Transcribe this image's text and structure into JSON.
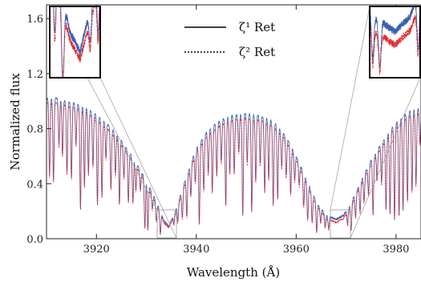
{
  "chart_data": {
    "type": "line",
    "xlabel": "Wavelength (Å)",
    "ylabel": "Normalized flux",
    "xlim": [
      3910,
      3985
    ],
    "ylim": [
      0.0,
      1.7
    ],
    "xticks": [
      3920,
      3940,
      3960,
      3980
    ],
    "yticks": [
      0.0,
      0.4,
      0.8,
      1.2,
      1.6
    ],
    "xtick_labels": [
      "3920",
      "3940",
      "3960",
      "3980"
    ],
    "ytick_labels": [
      "0.0",
      "0.4",
      "0.8",
      "1.2",
      "1.6"
    ],
    "grid": false,
    "legend_placement": "top-center",
    "series": [
      {
        "name": "ζ¹ Ret",
        "style": "solid",
        "color": "#3a5fb0",
        "continuum": [
          [
            3910,
            1.02
          ],
          [
            3912,
            1.02
          ],
          [
            3914,
            1.0
          ],
          [
            3916,
            0.98
          ],
          [
            3918,
            0.95
          ],
          [
            3920,
            0.9
          ],
          [
            3922,
            0.84
          ],
          [
            3924,
            0.76
          ],
          [
            3926,
            0.66
          ],
          [
            3928,
            0.55
          ],
          [
            3930,
            0.42
          ],
          [
            3932,
            0.27
          ],
          [
            3933.5,
            0.13
          ],
          [
            3934.5,
            0.09
          ],
          [
            3936,
            0.22
          ],
          [
            3938,
            0.45
          ],
          [
            3940,
            0.66
          ],
          [
            3942,
            0.77
          ],
          [
            3944,
            0.84
          ],
          [
            3946,
            0.88
          ],
          [
            3948,
            0.9
          ],
          [
            3950,
            0.91
          ],
          [
            3952,
            0.9
          ],
          [
            3954,
            0.88
          ],
          [
            3956,
            0.83
          ],
          [
            3958,
            0.74
          ],
          [
            3960,
            0.6
          ],
          [
            3962,
            0.43
          ],
          [
            3964,
            0.27
          ],
          [
            3966,
            0.17
          ],
          [
            3968,
            0.14
          ],
          [
            3969.5,
            0.17
          ],
          [
            3971,
            0.26
          ],
          [
            3973,
            0.42
          ],
          [
            3975,
            0.57
          ],
          [
            3977,
            0.69
          ],
          [
            3979,
            0.8
          ],
          [
            3981,
            0.88
          ],
          [
            3983,
            0.93
          ],
          [
            3985,
            0.95
          ]
        ]
      },
      {
        "name": "ζ² Ret",
        "style": "dashed",
        "color": "#e0262b",
        "continuum": [
          [
            3910,
            1.0
          ],
          [
            3912,
            1.0
          ],
          [
            3914,
            0.98
          ],
          [
            3916,
            0.96
          ],
          [
            3918,
            0.93
          ],
          [
            3920,
            0.88
          ],
          [
            3922,
            0.82
          ],
          [
            3924,
            0.74
          ],
          [
            3926,
            0.64
          ],
          [
            3928,
            0.53
          ],
          [
            3930,
            0.4
          ],
          [
            3932,
            0.25
          ],
          [
            3933.5,
            0.12
          ],
          [
            3934.5,
            0.08
          ],
          [
            3936,
            0.2
          ],
          [
            3938,
            0.43
          ],
          [
            3940,
            0.64
          ],
          [
            3942,
            0.75
          ],
          [
            3944,
            0.82
          ],
          [
            3946,
            0.86
          ],
          [
            3948,
            0.88
          ],
          [
            3950,
            0.89
          ],
          [
            3952,
            0.88
          ],
          [
            3954,
            0.86
          ],
          [
            3956,
            0.81
          ],
          [
            3958,
            0.72
          ],
          [
            3960,
            0.58
          ],
          [
            3962,
            0.41
          ],
          [
            3964,
            0.25
          ],
          [
            3966,
            0.15
          ],
          [
            3968,
            0.12
          ],
          [
            3969.5,
            0.15
          ],
          [
            3971,
            0.24
          ],
          [
            3973,
            0.4
          ],
          [
            3975,
            0.55
          ],
          [
            3977,
            0.67
          ],
          [
            3979,
            0.78
          ],
          [
            3981,
            0.86
          ],
          [
            3983,
            0.91
          ],
          [
            3985,
            0.93
          ]
        ]
      }
    ],
    "absorption_lines": [
      3910.6,
      3911.4,
      3912.5,
      3913.2,
      3914.1,
      3915.0,
      3915.9,
      3916.8,
      3917.6,
      3918.4,
      3919.3,
      3920.2,
      3921.1,
      3921.9,
      3922.9,
      3923.8,
      3924.6,
      3925.5,
      3926.4,
      3927.3,
      3927.9,
      3928.8,
      3929.7,
      3930.3,
      3931.2,
      3932.0,
      3932.8,
      3935.5,
      3936.3,
      3937.2,
      3938.1,
      3938.9,
      3939.8,
      3940.6,
      3941.5,
      3942.4,
      3943.2,
      3944.1,
      3945.0,
      3945.9,
      3946.7,
      3947.6,
      3948.5,
      3949.3,
      3950.2,
      3951.1,
      3951.9,
      3952.8,
      3953.7,
      3954.5,
      3955.4,
      3956.3,
      3957.1,
      3958.0,
      3958.9,
      3959.7,
      3960.6,
      3961.5,
      3962.3,
      3963.2,
      3964.1,
      3964.9,
      3965.8,
      3966.5,
      3970.3,
      3971.0,
      3971.9,
      3972.8,
      3973.6,
      3974.5,
      3975.4,
      3976.2,
      3977.1,
      3978.0,
      3978.8,
      3979.7,
      3980.6,
      3981.4,
      3982.3,
      3983.2,
      3984.0,
      3984.8
    ],
    "insets": [
      {
        "location": "top-left",
        "zoom_xlim": [
          3931.5,
          3936.5
        ],
        "zoom_ylim": [
          0.04,
          0.18
        ]
      },
      {
        "location": "top-right",
        "zoom_xlim": [
          3965.5,
          3970.5
        ],
        "zoom_ylim": [
          0.05,
          0.19
        ]
      }
    ]
  }
}
